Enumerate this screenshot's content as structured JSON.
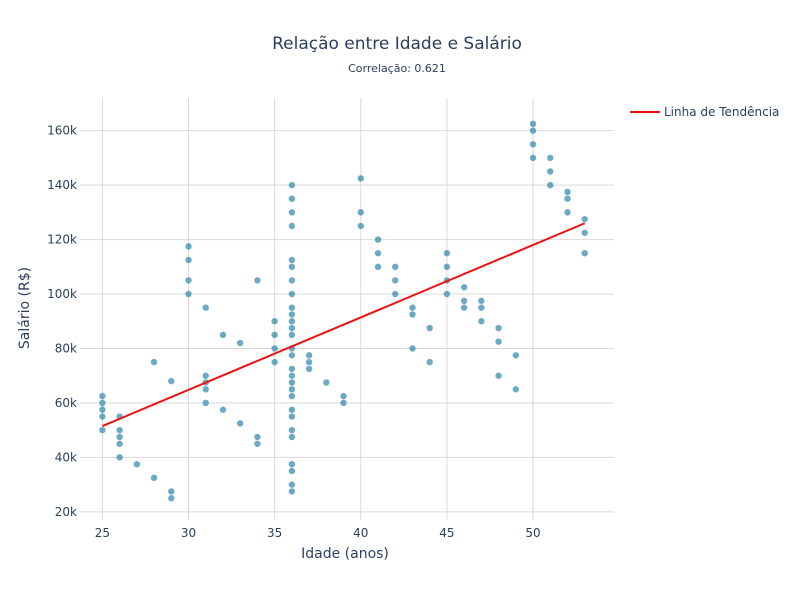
{
  "chart_data": {
    "type": "scatter",
    "title": "Relação entre Idade e Salário",
    "subtitle": "Correlação: 0.621",
    "xlabel": "Idade (anos)",
    "ylabel": "Salário (R$)",
    "xlim": [
      23.7,
      54.7
    ],
    "ylim": [
      17000,
      172000
    ],
    "xticks": [
      25,
      30,
      35,
      40,
      45,
      50
    ],
    "xtick_labels": [
      "25",
      "30",
      "35",
      "40",
      "45",
      "50"
    ],
    "yticks": [
      20000,
      40000,
      60000,
      80000,
      100000,
      120000,
      140000,
      160000
    ],
    "ytick_labels": [
      "20k",
      "40k",
      "60k",
      "80k",
      "100k",
      "120k",
      "140k",
      "160k"
    ],
    "grid": true,
    "legend_position": "top-right",
    "point_color": "#2e86ab",
    "trend_color": "#ee1111",
    "points": [
      [
        25,
        50000
      ],
      [
        25,
        55000
      ],
      [
        25,
        57500
      ],
      [
        25,
        60000
      ],
      [
        25,
        62500
      ],
      [
        26,
        40000
      ],
      [
        26,
        45000
      ],
      [
        26,
        47500
      ],
      [
        26,
        50000
      ],
      [
        26,
        55000
      ],
      [
        27,
        37500
      ],
      [
        28,
        32500
      ],
      [
        28,
        75000
      ],
      [
        29,
        25000
      ],
      [
        29,
        27500
      ],
      [
        29,
        68000
      ],
      [
        30,
        100000
      ],
      [
        30,
        105000
      ],
      [
        30,
        112500
      ],
      [
        30,
        117500
      ],
      [
        31,
        60000
      ],
      [
        31,
        65000
      ],
      [
        31,
        67500
      ],
      [
        31,
        70000
      ],
      [
        31,
        95000
      ],
      [
        32,
        57500
      ],
      [
        32,
        85000
      ],
      [
        33,
        52500
      ],
      [
        33,
        82000
      ],
      [
        34,
        45000
      ],
      [
        34,
        47500
      ],
      [
        34,
        105000
      ],
      [
        35,
        75000
      ],
      [
        35,
        80000
      ],
      [
        35,
        85000
      ],
      [
        35,
        90000
      ],
      [
        36,
        27500
      ],
      [
        36,
        30000
      ],
      [
        36,
        35000
      ],
      [
        36,
        37500
      ],
      [
        36,
        47500
      ],
      [
        36,
        50000
      ],
      [
        36,
        55000
      ],
      [
        36,
        57500
      ],
      [
        36,
        62500
      ],
      [
        36,
        65000
      ],
      [
        36,
        67500
      ],
      [
        36,
        70000
      ],
      [
        36,
        72500
      ],
      [
        36,
        77500
      ],
      [
        36,
        80000
      ],
      [
        36,
        85000
      ],
      [
        36,
        87500
      ],
      [
        36,
        90000
      ],
      [
        36,
        92500
      ],
      [
        36,
        95000
      ],
      [
        36,
        100000
      ],
      [
        36,
        105000
      ],
      [
        36,
        110000
      ],
      [
        36,
        112500
      ],
      [
        36,
        125000
      ],
      [
        36,
        130000
      ],
      [
        36,
        135000
      ],
      [
        36,
        140000
      ],
      [
        37,
        72500
      ],
      [
        37,
        75000
      ],
      [
        37,
        77500
      ],
      [
        38,
        67500
      ],
      [
        39,
        60000
      ],
      [
        39,
        62500
      ],
      [
        40,
        125000
      ],
      [
        40,
        130000
      ],
      [
        40,
        142500
      ],
      [
        41,
        110000
      ],
      [
        41,
        115000
      ],
      [
        41,
        120000
      ],
      [
        42,
        100000
      ],
      [
        42,
        105000
      ],
      [
        42,
        110000
      ],
      [
        43,
        80000
      ],
      [
        43,
        92500
      ],
      [
        43,
        95000
      ],
      [
        44,
        75000
      ],
      [
        44,
        87500
      ],
      [
        45,
        100000
      ],
      [
        45,
        105000
      ],
      [
        45,
        110000
      ],
      [
        45,
        115000
      ],
      [
        46,
        95000
      ],
      [
        46,
        97500
      ],
      [
        46,
        102500
      ],
      [
        47,
        90000
      ],
      [
        47,
        95000
      ],
      [
        47,
        97500
      ],
      [
        48,
        70000
      ],
      [
        48,
        82500
      ],
      [
        48,
        87500
      ],
      [
        49,
        65000
      ],
      [
        49,
        77500
      ],
      [
        50,
        150000
      ],
      [
        50,
        155000
      ],
      [
        50,
        160000
      ],
      [
        50,
        162500
      ],
      [
        51,
        140000
      ],
      [
        51,
        145000
      ],
      [
        51,
        150000
      ],
      [
        52,
        130000
      ],
      [
        52,
        135000
      ],
      [
        52,
        137500
      ],
      [
        53,
        115000
      ],
      [
        53,
        122500
      ],
      [
        53,
        127500
      ]
    ],
    "trend_line": {
      "name": "Linha de Tendência",
      "x": [
        25,
        53
      ],
      "y": [
        51500,
        126000
      ]
    }
  }
}
